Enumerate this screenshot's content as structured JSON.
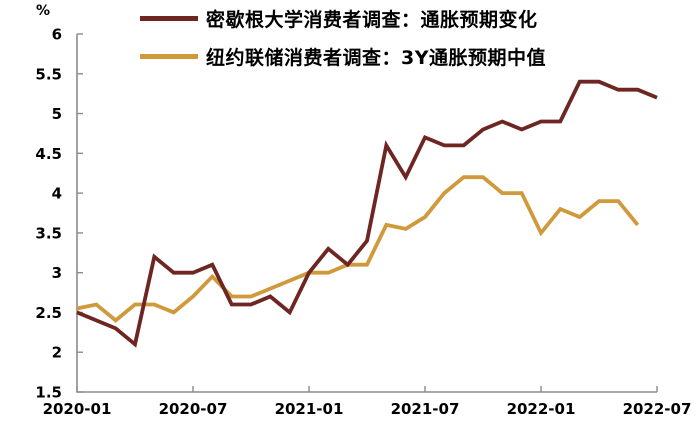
{
  "chart_data": {
    "type": "line",
    "title": "",
    "unit": "%",
    "xlabel": "",
    "ylabel": "%",
    "ylim": [
      1.5,
      6
    ],
    "grid": false,
    "legend_position": "top",
    "axis_color": "#8c8c8c",
    "text_color": "#000000",
    "y_ticks": [
      1.5,
      2,
      2.5,
      3,
      3.5,
      4,
      4.5,
      5,
      5.5,
      6
    ],
    "x_ticks": [
      {
        "label": "2020-01",
        "month_index": 0
      },
      {
        "label": "2020-07",
        "month_index": 6
      },
      {
        "label": "2021-01",
        "month_index": 12
      },
      {
        "label": "2021-07",
        "month_index": 18
      },
      {
        "label": "2022-01",
        "month_index": 24
      },
      {
        "label": "2022-07",
        "month_index": 30
      }
    ],
    "month_labels": [
      "2020-01",
      "2020-02",
      "2020-03",
      "2020-04",
      "2020-05",
      "2020-06",
      "2020-07",
      "2020-08",
      "2020-09",
      "2020-10",
      "2020-11",
      "2020-12",
      "2021-01",
      "2021-02",
      "2021-03",
      "2021-04",
      "2021-05",
      "2021-06",
      "2021-07",
      "2021-08",
      "2021-09",
      "2021-10",
      "2021-11",
      "2021-12",
      "2022-01",
      "2022-02",
      "2022-03",
      "2022-04",
      "2022-05",
      "2022-06",
      "2022-07"
    ],
    "series": [
      {
        "id": "michigan",
        "name": "密歇根大学消费者调查：通胀预期变化",
        "color": "#6e2622",
        "values": [
          2.5,
          2.4,
          2.3,
          2.1,
          3.2,
          3.0,
          3.0,
          3.1,
          2.6,
          2.6,
          2.7,
          2.5,
          3.0,
          3.3,
          3.1,
          3.4,
          4.6,
          4.2,
          4.7,
          4.6,
          4.6,
          4.8,
          4.9,
          4.8,
          4.9,
          4.9,
          5.4,
          5.4,
          5.3,
          5.3,
          5.2
        ]
      },
      {
        "id": "nyfed",
        "name": "纽约联储消费者调查：3Y通胀预期中值",
        "color": "#d09a3c",
        "values": [
          2.55,
          2.6,
          2.4,
          2.6,
          2.6,
          2.5,
          2.7,
          2.95,
          2.7,
          2.7,
          2.8,
          2.9,
          3.0,
          3.0,
          3.1,
          3.1,
          3.6,
          3.55,
          3.7,
          4.0,
          4.2,
          4.2,
          4.0,
          4.0,
          3.5,
          3.8,
          3.7,
          3.9,
          3.9,
          3.6
        ]
      }
    ]
  }
}
